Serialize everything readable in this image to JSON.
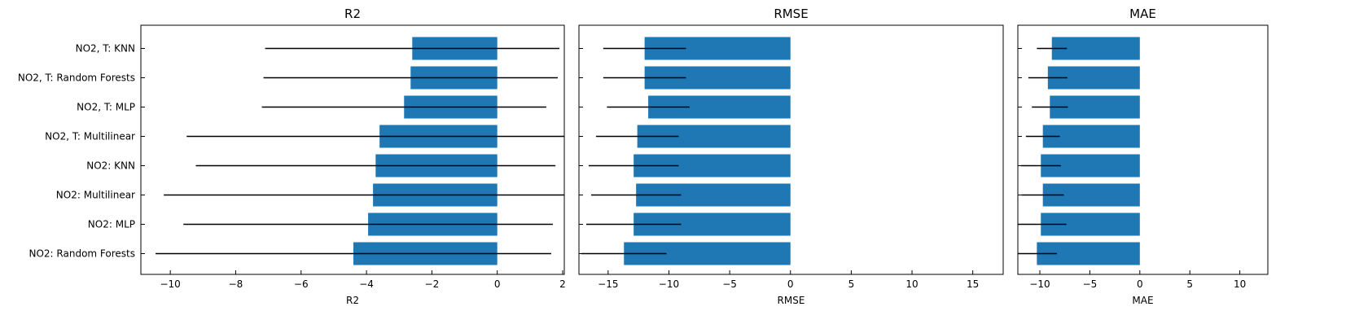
{
  "chart_data": [
    {
      "type": "bar",
      "orientation": "horizontal",
      "title": "R2",
      "xlabel": "R2",
      "ylabel": "",
      "xlim": [
        -10.9,
        2.05
      ],
      "xticks": [
        -10,
        -8,
        -6,
        -4,
        -2,
        0,
        2
      ],
      "xtick_labels": [
        "−10",
        "−8",
        "−6",
        "−4",
        "−2",
        "0",
        "2"
      ],
      "categories": [
        "NO2, T: KNN",
        "NO2, T: Random Forests",
        "NO2, T: MLP",
        "NO2, T: Multilinear",
        "NO2: KNN",
        "NO2: Multilinear",
        "NO2: MLP",
        "NO2: Random Forests"
      ],
      "values": [
        -2.6,
        -2.65,
        -2.85,
        -3.6,
        -3.72,
        -3.8,
        -3.95,
        -4.4
      ],
      "errors": [
        4.5,
        4.5,
        4.35,
        5.9,
        5.5,
        6.4,
        5.65,
        6.05
      ],
      "color": "#1f77b4",
      "error_color": "#000000"
    },
    {
      "type": "bar",
      "orientation": "horizontal",
      "title": "RMSE",
      "xlabel": "RMSE",
      "ylabel": "",
      "xlim": [
        -17.4,
        17.5
      ],
      "xticks": [
        -15,
        -10,
        -5,
        0,
        5,
        10,
        15
      ],
      "xtick_labels": [
        "−15",
        "−10",
        "−5",
        "0",
        "5",
        "10",
        "15"
      ],
      "categories": [
        "NO2, T: KNN",
        "NO2, T: Random Forests",
        "NO2, T: MLP",
        "NO2, T: Multilinear",
        "NO2: KNN",
        "NO2: Multilinear",
        "NO2: MLP",
        "NO2: Random Forests"
      ],
      "values": [
        -12.0,
        -12.0,
        -11.7,
        -12.6,
        -12.9,
        -12.7,
        -12.9,
        -13.7
      ],
      "errors": [
        3.4,
        3.4,
        3.4,
        3.4,
        3.7,
        3.7,
        3.9,
        3.5
      ],
      "color": "#1f77b4",
      "error_color": "#000000"
    },
    {
      "type": "bar",
      "orientation": "horizontal",
      "title": "MAE",
      "xlabel": "MAE",
      "ylabel": "",
      "xlim": [
        -12.2,
        12.8
      ],
      "xticks": [
        -10,
        -5,
        0,
        5,
        10
      ],
      "xtick_labels": [
        "−10",
        "−5",
        "0",
        "5",
        "10"
      ],
      "categories": [
        "NO2, T: KNN",
        "NO2, T: Random Forests",
        "NO2, T: MLP",
        "NO2, T: Multilinear",
        "NO2: KNN",
        "NO2: Multilinear",
        "NO2: MLP",
        "NO2: Random Forests"
      ],
      "values": [
        -8.8,
        -9.2,
        -9.0,
        -9.7,
        -9.9,
        -9.7,
        -9.9,
        -10.3
      ],
      "errors": [
        1.5,
        1.95,
        1.8,
        1.7,
        2.0,
        2.1,
        2.55,
        2.0
      ],
      "color": "#1f77b4",
      "error_color": "#000000"
    }
  ]
}
